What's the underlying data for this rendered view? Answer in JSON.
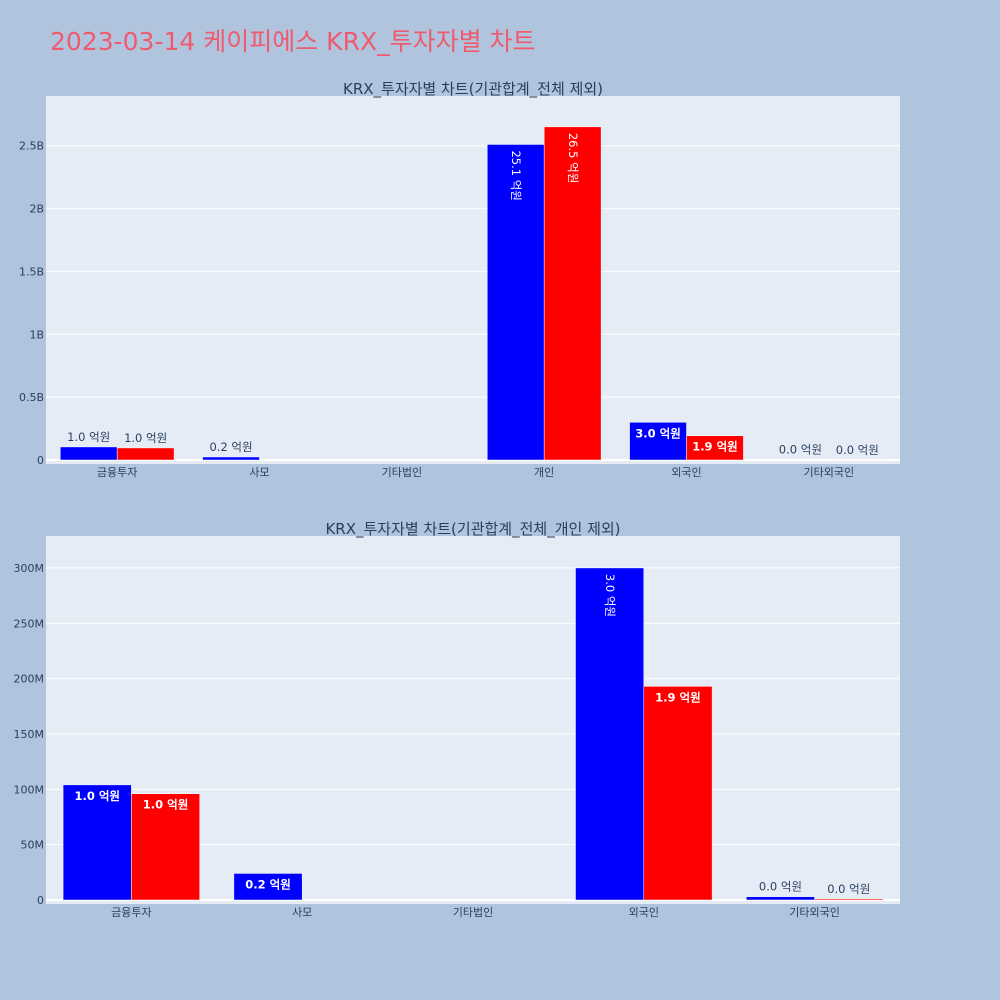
{
  "title": "2023-03-14 케이피에스 KRX_투자자별 차트",
  "colors": {
    "background": "#b0c4de",
    "plot_bg": "#e5ecf6",
    "grid": "#ffffff",
    "series_blue": "#0000ff",
    "series_red": "#ff0000",
    "text": "#2a3f5f",
    "title": "#ef5a6f"
  },
  "chart_data": [
    {
      "type": "bar",
      "title": "KRX_투자자별 차트(기관합계_전체 제외)",
      "categories": [
        "금융투자",
        "사모",
        "기타법인",
        "개인",
        "외국인",
        "기타외국인"
      ],
      "ylim": [
        0,
        2800000000
      ],
      "yticks": [
        0,
        500000000,
        1000000000,
        1500000000,
        2000000000,
        2500000000
      ],
      "ytick_labels": [
        "0",
        "0.5B",
        "1B",
        "1.5B",
        "2B",
        "2.5B"
      ],
      "grid": true,
      "series": [
        {
          "color": "#0000ff",
          "values": [
            104000000,
            24000000,
            null,
            2510000000,
            300000000,
            3000000
          ],
          "labels": [
            "1.0 억원",
            "0.2 억원",
            "",
            "25.1 억원",
            "3.0 억원",
            "0.0 억원"
          ]
        },
        {
          "color": "#ff0000",
          "values": [
            96000000,
            null,
            null,
            2650000000,
            193000000,
            1000000
          ],
          "labels": [
            "1.0 억원",
            "",
            "",
            "26.5 억원",
            "1.9 억원",
            "0.0 억원"
          ]
        }
      ]
    },
    {
      "type": "bar",
      "title": "KRX_투자자별 차트(기관합계_전체_개인 제외)",
      "categories": [
        "금융투자",
        "사모",
        "기타법인",
        "외국인",
        "기타외국인"
      ],
      "ylim": [
        0,
        318000000
      ],
      "yticks": [
        0,
        50000000,
        100000000,
        150000000,
        200000000,
        250000000,
        300000000
      ],
      "ytick_labels": [
        "0",
        "50M",
        "100M",
        "150M",
        "200M",
        "250M",
        "300M"
      ],
      "grid": true,
      "series": [
        {
          "color": "#0000ff",
          "values": [
            104000000,
            24000000,
            null,
            300000000,
            3000000
          ],
          "labels": [
            "1.0 억원",
            "0.2 억원",
            "",
            "3.0 억원",
            "0.0 억원"
          ]
        },
        {
          "color": "#ff0000",
          "values": [
            96000000,
            null,
            null,
            193000000,
            1000000
          ],
          "labels": [
            "1.0 억원",
            "",
            "",
            "1.9 억원",
            "0.0 억원"
          ]
        }
      ]
    }
  ]
}
